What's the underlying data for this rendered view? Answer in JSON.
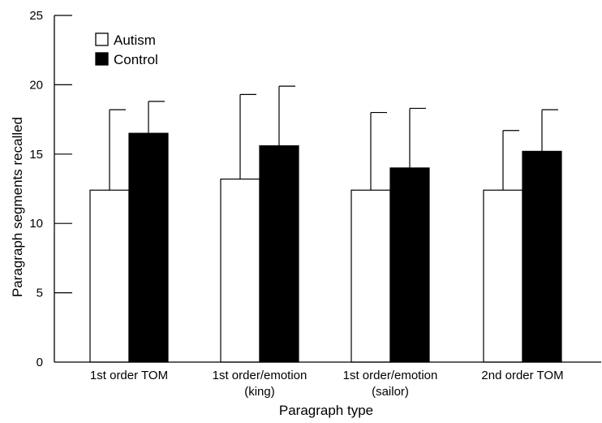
{
  "chart_data": {
    "type": "bar",
    "title": "",
    "xlabel": "Paragraph type",
    "ylabel": "Paragraph segments recalled",
    "ylim": [
      0,
      25
    ],
    "yticks": [
      0,
      5,
      10,
      15,
      20,
      25
    ],
    "categories": [
      [
        "1st order TOM"
      ],
      [
        "1st order/emotion",
        "(king)"
      ],
      [
        "1st order/emotion",
        "(sailor)"
      ],
      [
        "2nd order TOM"
      ]
    ],
    "series": [
      {
        "name": "Autism",
        "fill": "#ffffff",
        "values": [
          12.4,
          13.2,
          12.4,
          12.4
        ],
        "error_upper": [
          18.2,
          19.3,
          18.0,
          16.7
        ]
      },
      {
        "name": "Control",
        "fill": "#000000",
        "values": [
          16.5,
          15.6,
          14.0,
          15.2
        ],
        "error_upper": [
          18.8,
          19.9,
          18.3,
          18.2
        ]
      }
    ],
    "legend_position": "top-left",
    "grid": false
  }
}
